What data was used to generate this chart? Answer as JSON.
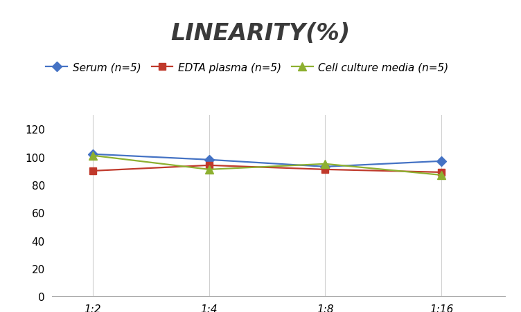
{
  "title": "LINEARITY(%)",
  "x_labels": [
    "1:2",
    "1:4",
    "1:8",
    "1:16"
  ],
  "x_positions": [
    0,
    1,
    2,
    3
  ],
  "series": [
    {
      "label": "Serum (n=5)",
      "values": [
        102,
        98,
        93,
        97
      ],
      "color": "#4472C4",
      "marker": "D",
      "marker_size": 7,
      "linewidth": 1.6
    },
    {
      "label": "EDTA plasma (n=5)",
      "values": [
        90,
        94,
        91,
        89
      ],
      "color": "#C0392B",
      "marker": "s",
      "marker_size": 7,
      "linewidth": 1.6
    },
    {
      "label": "Cell culture media (n=5)",
      "values": [
        101,
        91,
        95,
        87
      ],
      "color": "#8DB030",
      "marker": "^",
      "marker_size": 8,
      "linewidth": 1.6
    }
  ],
  "ylim": [
    0,
    130
  ],
  "yticks": [
    0,
    20,
    40,
    60,
    80,
    100,
    120
  ],
  "grid_color": "#D0D0D0",
  "background_color": "#FFFFFF",
  "title_fontsize": 24,
  "legend_fontsize": 11,
  "tick_fontsize": 11
}
